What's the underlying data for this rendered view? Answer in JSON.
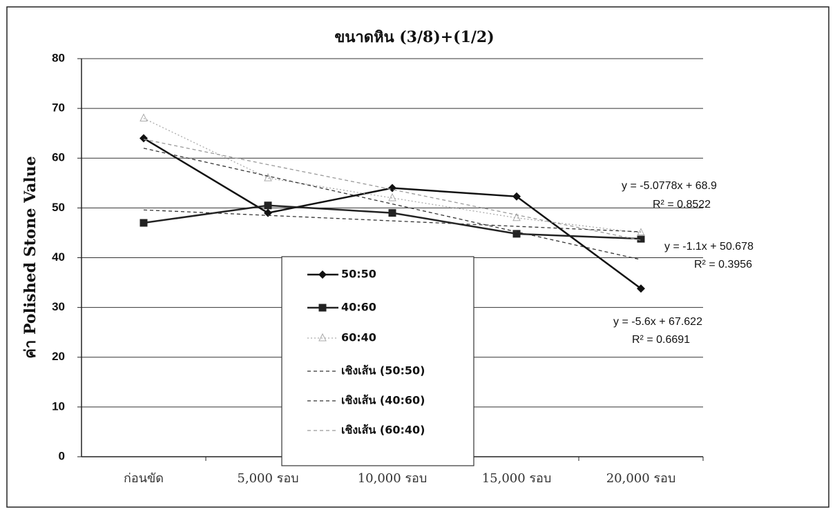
{
  "chart_data": {
    "type": "line",
    "title": "ขนาดหิน (3/8)+(1/2)",
    "y_label": "ค่า Polished Stone Value",
    "categories": [
      "ก่อนขัด",
      "5,000 รอบ",
      "10,000 รอบ",
      "15,000 รอบ",
      "20,000 รอบ"
    ],
    "ylim": [
      0,
      80
    ],
    "yticks": [
      0,
      10,
      20,
      30,
      40,
      50,
      60,
      70,
      80
    ],
    "grid": true,
    "legend": "center",
    "series": [
      {
        "name": "50:50",
        "color": "#111111",
        "marker": "diamond",
        "dash": "solid",
        "values": [
          64,
          49,
          54,
          52.3,
          33.8
        ]
      },
      {
        "name": "40:60",
        "color": "#222222",
        "marker": "square",
        "dash": "solid",
        "values": [
          47,
          50.5,
          49,
          44.8,
          43.8
        ]
      },
      {
        "name": "60:40",
        "color": "#aaaaaa",
        "marker": "triangle",
        "dash": "dotted",
        "values": [
          68,
          56,
          52,
          48,
          45
        ]
      },
      {
        "name": "เชิงเส้น (50:50)",
        "color": "#333333",
        "marker": "none",
        "dash": "dashed",
        "values": [
          62,
          56.4,
          50.8,
          45.2,
          39.6
        ]
      },
      {
        "name": "เชิงเส้น (40:60)",
        "color": "#333333",
        "marker": "none",
        "dash": "dashed",
        "values": [
          49.6,
          48.5,
          47.4,
          46.3,
          45.2
        ]
      },
      {
        "name": "เชิงเส้น (60:40)",
        "color": "#999999",
        "marker": "none",
        "dash": "dashed",
        "values": [
          63.8,
          58.7,
          53.7,
          48.6,
          43.5
        ]
      }
    ],
    "annotations": [
      "y = -5.0778x + 68.9",
      "R² = 0.8522",
      "y = -1.1x + 50.678",
      "R² = 0.3956",
      "y = -5.6x + 67.622",
      "R² = 0.6691"
    ]
  }
}
